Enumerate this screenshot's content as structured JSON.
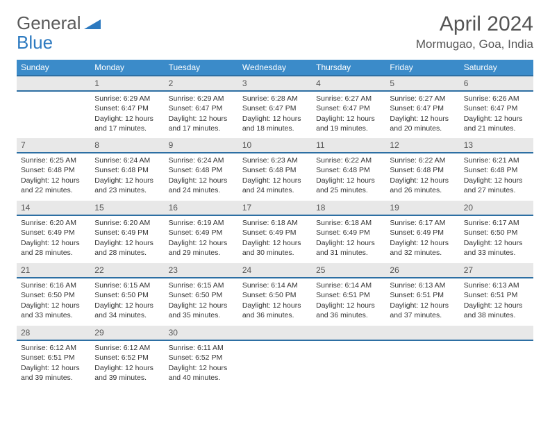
{
  "logo": {
    "text1": "General",
    "text2": "Blue"
  },
  "title": "April 2024",
  "location": "Mormugao, Goa, India",
  "colors": {
    "header_bg": "#3b8bc9",
    "header_border": "#2d6fa3",
    "daynum_bg": "#e8e8e8",
    "logo_gray": "#5a5a5a",
    "logo_blue": "#2d7ac0"
  },
  "weekdays": [
    "Sunday",
    "Monday",
    "Tuesday",
    "Wednesday",
    "Thursday",
    "Friday",
    "Saturday"
  ],
  "weeks": [
    [
      null,
      {
        "n": "1",
        "sr": "6:29 AM",
        "ss": "6:47 PM",
        "dl": "12 hours and 17 minutes."
      },
      {
        "n": "2",
        "sr": "6:29 AM",
        "ss": "6:47 PM",
        "dl": "12 hours and 17 minutes."
      },
      {
        "n": "3",
        "sr": "6:28 AM",
        "ss": "6:47 PM",
        "dl": "12 hours and 18 minutes."
      },
      {
        "n": "4",
        "sr": "6:27 AM",
        "ss": "6:47 PM",
        "dl": "12 hours and 19 minutes."
      },
      {
        "n": "5",
        "sr": "6:27 AM",
        "ss": "6:47 PM",
        "dl": "12 hours and 20 minutes."
      },
      {
        "n": "6",
        "sr": "6:26 AM",
        "ss": "6:47 PM",
        "dl": "12 hours and 21 minutes."
      }
    ],
    [
      {
        "n": "7",
        "sr": "6:25 AM",
        "ss": "6:48 PM",
        "dl": "12 hours and 22 minutes."
      },
      {
        "n": "8",
        "sr": "6:24 AM",
        "ss": "6:48 PM",
        "dl": "12 hours and 23 minutes."
      },
      {
        "n": "9",
        "sr": "6:24 AM",
        "ss": "6:48 PM",
        "dl": "12 hours and 24 minutes."
      },
      {
        "n": "10",
        "sr": "6:23 AM",
        "ss": "6:48 PM",
        "dl": "12 hours and 24 minutes."
      },
      {
        "n": "11",
        "sr": "6:22 AM",
        "ss": "6:48 PM",
        "dl": "12 hours and 25 minutes."
      },
      {
        "n": "12",
        "sr": "6:22 AM",
        "ss": "6:48 PM",
        "dl": "12 hours and 26 minutes."
      },
      {
        "n": "13",
        "sr": "6:21 AM",
        "ss": "6:48 PM",
        "dl": "12 hours and 27 minutes."
      }
    ],
    [
      {
        "n": "14",
        "sr": "6:20 AM",
        "ss": "6:49 PM",
        "dl": "12 hours and 28 minutes."
      },
      {
        "n": "15",
        "sr": "6:20 AM",
        "ss": "6:49 PM",
        "dl": "12 hours and 28 minutes."
      },
      {
        "n": "16",
        "sr": "6:19 AM",
        "ss": "6:49 PM",
        "dl": "12 hours and 29 minutes."
      },
      {
        "n": "17",
        "sr": "6:18 AM",
        "ss": "6:49 PM",
        "dl": "12 hours and 30 minutes."
      },
      {
        "n": "18",
        "sr": "6:18 AM",
        "ss": "6:49 PM",
        "dl": "12 hours and 31 minutes."
      },
      {
        "n": "19",
        "sr": "6:17 AM",
        "ss": "6:49 PM",
        "dl": "12 hours and 32 minutes."
      },
      {
        "n": "20",
        "sr": "6:17 AM",
        "ss": "6:50 PM",
        "dl": "12 hours and 33 minutes."
      }
    ],
    [
      {
        "n": "21",
        "sr": "6:16 AM",
        "ss": "6:50 PM",
        "dl": "12 hours and 33 minutes."
      },
      {
        "n": "22",
        "sr": "6:15 AM",
        "ss": "6:50 PM",
        "dl": "12 hours and 34 minutes."
      },
      {
        "n": "23",
        "sr": "6:15 AM",
        "ss": "6:50 PM",
        "dl": "12 hours and 35 minutes."
      },
      {
        "n": "24",
        "sr": "6:14 AM",
        "ss": "6:50 PM",
        "dl": "12 hours and 36 minutes."
      },
      {
        "n": "25",
        "sr": "6:14 AM",
        "ss": "6:51 PM",
        "dl": "12 hours and 36 minutes."
      },
      {
        "n": "26",
        "sr": "6:13 AM",
        "ss": "6:51 PM",
        "dl": "12 hours and 37 minutes."
      },
      {
        "n": "27",
        "sr": "6:13 AM",
        "ss": "6:51 PM",
        "dl": "12 hours and 38 minutes."
      }
    ],
    [
      {
        "n": "28",
        "sr": "6:12 AM",
        "ss": "6:51 PM",
        "dl": "12 hours and 39 minutes."
      },
      {
        "n": "29",
        "sr": "6:12 AM",
        "ss": "6:52 PM",
        "dl": "12 hours and 39 minutes."
      },
      {
        "n": "30",
        "sr": "6:11 AM",
        "ss": "6:52 PM",
        "dl": "12 hours and 40 minutes."
      },
      null,
      null,
      null,
      null
    ]
  ],
  "labels": {
    "sunrise": "Sunrise:",
    "sunset": "Sunset:",
    "daylight": "Daylight:"
  }
}
